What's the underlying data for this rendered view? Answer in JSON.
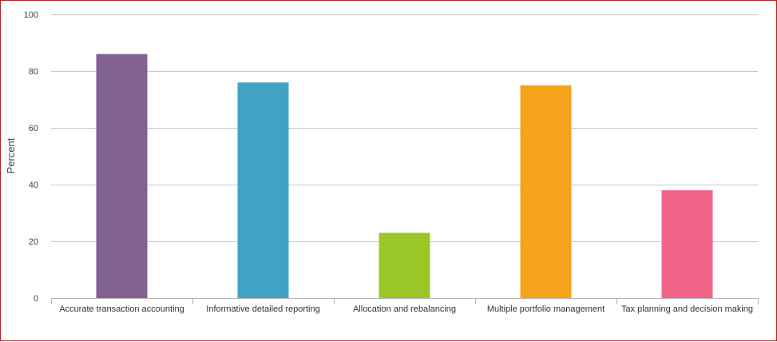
{
  "chart_data": {
    "type": "bar",
    "title": "",
    "xlabel": "",
    "ylabel": "Percent",
    "ylim": [
      0,
      100
    ],
    "yticks": [
      0,
      20,
      40,
      60,
      80,
      100
    ],
    "grid": true,
    "categories": [
      "Accurate transaction accounting",
      "Informative detailed reporting",
      "Allocation and rebalancing",
      "Multiple portfolio management",
      "Tax planning and decision making"
    ],
    "values": [
      86,
      76,
      23,
      75,
      38
    ],
    "colors": [
      "#80618f",
      "#40a3c4",
      "#99c727",
      "#f4a31b",
      "#f26487"
    ]
  }
}
